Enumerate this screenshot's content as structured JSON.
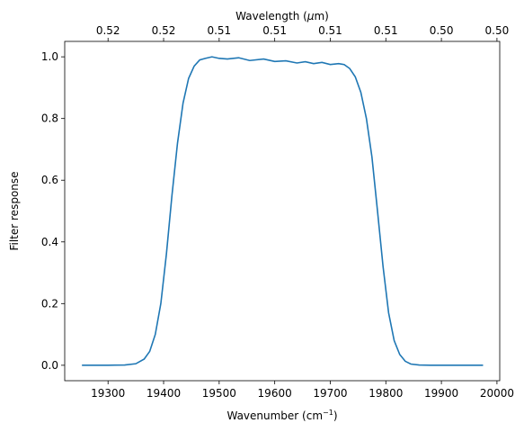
{
  "chart_data": {
    "type": "line",
    "xlabel": "Wavenumber (cm",
    "xlabel_sup": "−1",
    "xlabel_end": ")",
    "ylabel": "Filter response",
    "top_xlabel": "Wavelength (",
    "top_xlabel_mu": "μ",
    "top_xlabel_end": "m)",
    "xlim": [
      19222,
      20005
    ],
    "ylim": [
      -0.05,
      1.05
    ],
    "x_ticks": [
      19300,
      19400,
      19500,
      19600,
      19700,
      19800,
      19900,
      20000
    ],
    "y_ticks": [
      0.0,
      0.2,
      0.4,
      0.6,
      0.8,
      1.0
    ],
    "y_tick_labels": [
      "0.0",
      "0.2",
      "0.4",
      "0.6",
      "0.8",
      "1.0"
    ],
    "top_ticks": [
      {
        "at": 19300,
        "label": "0.52"
      },
      {
        "at": 19400,
        "label": "0.52"
      },
      {
        "at": 19500,
        "label": "0.51"
      },
      {
        "at": 19600,
        "label": "0.51"
      },
      {
        "at": 19700,
        "label": "0.51"
      },
      {
        "at": 19800,
        "label": "0.51"
      },
      {
        "at": 19900,
        "label": "0.50"
      },
      {
        "at": 20000,
        "label": "0.50"
      }
    ],
    "line_color": "#1f77b4",
    "series": [
      {
        "x": [
          19253,
          19300,
          19330,
          19350,
          19365,
          19375,
          19385,
          19395,
          19405,
          19415,
          19425,
          19435,
          19445,
          19455,
          19465,
          19475,
          19487,
          19500,
          19515,
          19535,
          19555,
          19580,
          19600,
          19620,
          19640,
          19655,
          19670,
          19685,
          19700,
          19715,
          19725,
          19735,
          19745,
          19755,
          19765,
          19775,
          19785,
          19795,
          19805,
          19815,
          19825,
          19835,
          19845,
          19860,
          19880,
          19900,
          19930,
          19975
        ],
        "y": [
          0.0,
          0.0,
          0.001,
          0.005,
          0.02,
          0.045,
          0.1,
          0.2,
          0.36,
          0.55,
          0.72,
          0.85,
          0.93,
          0.97,
          0.99,
          0.995,
          1.0,
          0.995,
          0.993,
          0.997,
          0.988,
          0.993,
          0.985,
          0.987,
          0.98,
          0.984,
          0.978,
          0.982,
          0.975,
          0.978,
          0.975,
          0.962,
          0.935,
          0.885,
          0.8,
          0.675,
          0.5,
          0.32,
          0.17,
          0.08,
          0.035,
          0.013,
          0.004,
          0.001,
          0.0,
          0.0,
          0.0,
          0.0
        ]
      }
    ]
  }
}
